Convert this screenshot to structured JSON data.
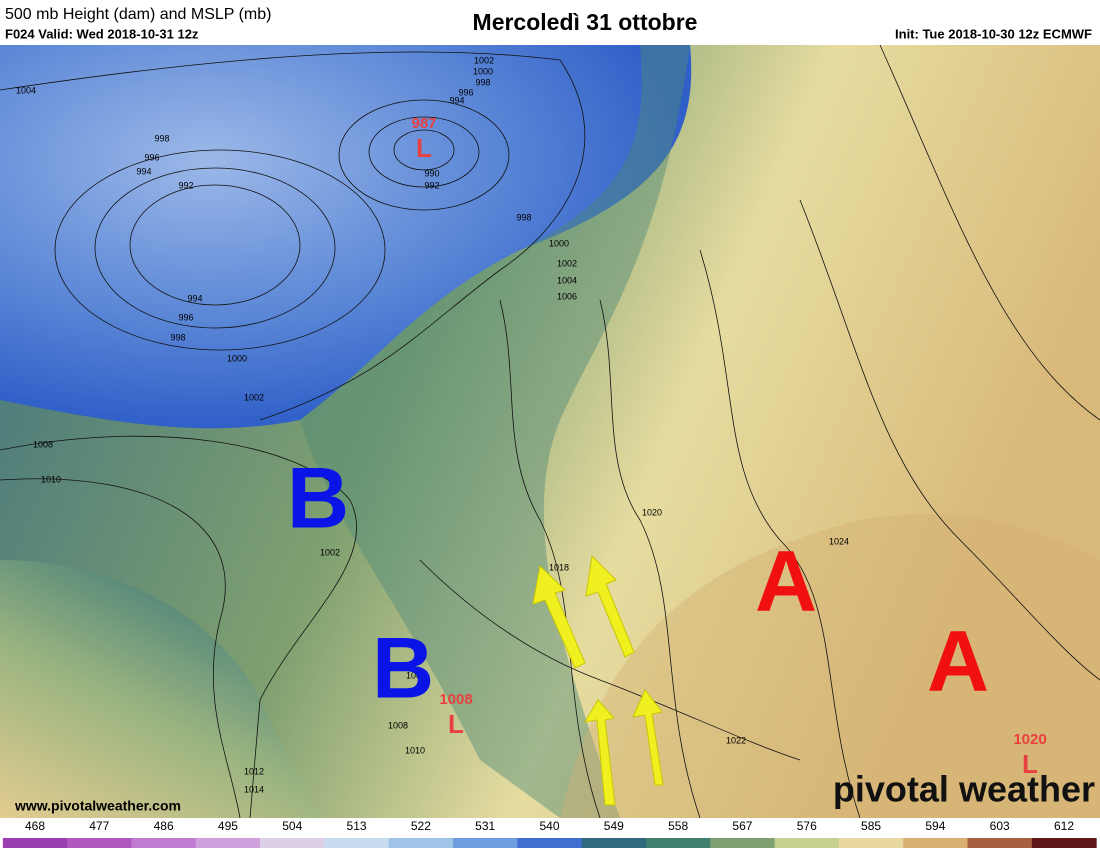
{
  "header": {
    "left_title": "500 mb Height (dam) and MSLP (mb)",
    "left_subtitle": "F024 Valid: Wed 2018-10-31 12z",
    "title": "Mercoledì 31 ottobre",
    "init": "Init: Tue 2018-10-30 12z ECMWF"
  },
  "map": {
    "pressure_centers": [
      {
        "letter": "B",
        "color": "#0a14e6"
      },
      {
        "letter": "B",
        "color": "#0a14e6"
      },
      {
        "letter": "A",
        "color": "#f01010"
      },
      {
        "letter": "A",
        "color": "#f01010"
      }
    ],
    "lows": [
      {
        "value": "987",
        "letter": "L"
      },
      {
        "value": "1008",
        "letter": "L"
      },
      {
        "value": "1020",
        "letter": "L"
      }
    ],
    "isobar_labels": [
      "1002",
      "1000",
      "998",
      "996",
      "994",
      "1004",
      "998",
      "996",
      "994",
      "992",
      "990",
      "992",
      "998",
      "1000",
      "1002",
      "1004",
      "1006",
      "994",
      "996",
      "998",
      "1000",
      "1002",
      "1008",
      "1010",
      "1002",
      "1020",
      "1024",
      "1018",
      "1004",
      "1008",
      "1010",
      "1012",
      "1014",
      "1022"
    ]
  },
  "footer": {
    "website": "www.pivotalweather.com",
    "logo": "pivotal weather"
  },
  "colorbar": {
    "ticks": [
      468,
      477,
      486,
      495,
      504,
      513,
      522,
      531,
      540,
      549,
      558,
      567,
      576,
      585,
      594,
      603,
      612
    ],
    "colors": [
      "#9b3fb0",
      "#b058c0",
      "#c07ad0",
      "#cfa0dc",
      "#dcd0e8",
      "#c8dcf0",
      "#a0c4e8",
      "#6f9ee0",
      "#3f6fd0",
      "#2f6a80",
      "#3f8070",
      "#7fa070",
      "#c8d090",
      "#e8d8a0",
      "#d8b070",
      "#a86040",
      "#601818"
    ]
  }
}
